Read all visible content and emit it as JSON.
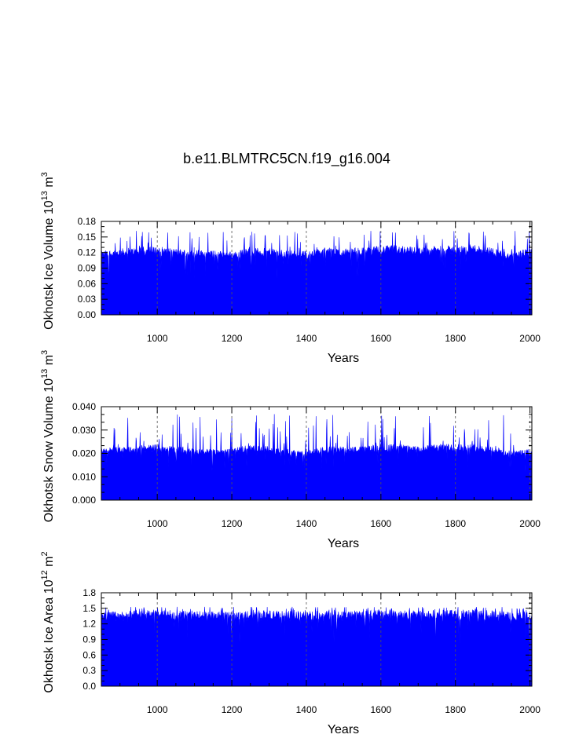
{
  "title": "b.e11.BLMTRC5CN.f19_g16.004",
  "series_color": "#0000ff",
  "chart_data": [
    {
      "type": "area",
      "title": "",
      "xlabel": "Years",
      "ylabel_text": "Okhotsk Ice Volume 10",
      "ylabel_exp": "13",
      "ylabel_unit": " m",
      "ylabel_unit_exp": "3",
      "xlim": [
        850,
        2005
      ],
      "ylim": [
        0,
        0.18
      ],
      "xticks": [
        1000,
        1200,
        1400,
        1600,
        1800,
        2000
      ],
      "yticks": [
        "0.00",
        "0.03",
        "0.06",
        "0.09",
        "0.12",
        "0.15",
        "0.18"
      ],
      "typical_max": 0.13,
      "peak_max": 0.162,
      "envelope": [
        [
          850,
          0.123
        ],
        [
          900,
          0.128
        ],
        [
          950,
          0.13
        ],
        [
          1000,
          0.132
        ],
        [
          1050,
          0.128
        ],
        [
          1100,
          0.126
        ],
        [
          1150,
          0.124
        ],
        [
          1200,
          0.122
        ],
        [
          1250,
          0.13
        ],
        [
          1300,
          0.128
        ],
        [
          1350,
          0.125
        ],
        [
          1400,
          0.123
        ],
        [
          1450,
          0.13
        ],
        [
          1500,
          0.128
        ],
        [
          1550,
          0.13
        ],
        [
          1600,
          0.133
        ],
        [
          1650,
          0.135
        ],
        [
          1700,
          0.13
        ],
        [
          1750,
          0.133
        ],
        [
          1800,
          0.133
        ],
        [
          1850,
          0.136
        ],
        [
          1900,
          0.13
        ],
        [
          1950,
          0.12
        ],
        [
          2005,
          0.13
        ]
      ]
    },
    {
      "type": "area",
      "title": "",
      "xlabel": "Years",
      "ylabel_text": "Okhotsk Snow Volume 10",
      "ylabel_exp": "13",
      "ylabel_unit": " m",
      "ylabel_unit_exp": "3",
      "xlim": [
        850,
        2005
      ],
      "ylim": [
        0,
        0.04
      ],
      "xticks": [
        1000,
        1200,
        1400,
        1600,
        1800,
        2000
      ],
      "yticks": [
        "0.000",
        "0.010",
        "0.020",
        "0.030",
        "0.040"
      ],
      "typical_max": 0.024,
      "peak_max": 0.037,
      "envelope": [
        [
          850,
          0.022
        ],
        [
          900,
          0.023
        ],
        [
          950,
          0.023
        ],
        [
          1000,
          0.024
        ],
        [
          1050,
          0.023
        ],
        [
          1100,
          0.022
        ],
        [
          1150,
          0.022
        ],
        [
          1200,
          0.022
        ],
        [
          1250,
          0.024
        ],
        [
          1300,
          0.023
        ],
        [
          1350,
          0.022
        ],
        [
          1400,
          0.021
        ],
        [
          1450,
          0.023
        ],
        [
          1500,
          0.023
        ],
        [
          1550,
          0.023
        ],
        [
          1600,
          0.024
        ],
        [
          1650,
          0.024
        ],
        [
          1700,
          0.023
        ],
        [
          1750,
          0.024
        ],
        [
          1800,
          0.024
        ],
        [
          1850,
          0.024
        ],
        [
          1900,
          0.023
        ],
        [
          1950,
          0.021
        ],
        [
          2005,
          0.022
        ]
      ]
    },
    {
      "type": "area",
      "title": "",
      "xlabel": "Years",
      "ylabel_text": "Okhotsk Ice Area 10",
      "ylabel_exp": "12",
      "ylabel_unit": " m",
      "ylabel_unit_exp": "2",
      "xlim": [
        850,
        2005
      ],
      "ylim": [
        0,
        1.8
      ],
      "xticks": [
        1000,
        1200,
        1400,
        1600,
        1800,
        2000
      ],
      "yticks": [
        "0.0",
        "0.3",
        "0.6",
        "0.9",
        "1.2",
        "1.5",
        "1.8"
      ],
      "typical_max": 1.46,
      "peak_max": 1.53,
      "envelope": [
        [
          850,
          1.44
        ],
        [
          900,
          1.45
        ],
        [
          950,
          1.46
        ],
        [
          1000,
          1.47
        ],
        [
          1050,
          1.46
        ],
        [
          1100,
          1.45
        ],
        [
          1150,
          1.44
        ],
        [
          1200,
          1.43
        ],
        [
          1250,
          1.46
        ],
        [
          1300,
          1.46
        ],
        [
          1350,
          1.45
        ],
        [
          1400,
          1.44
        ],
        [
          1450,
          1.46
        ],
        [
          1500,
          1.46
        ],
        [
          1550,
          1.46
        ],
        [
          1600,
          1.47
        ],
        [
          1650,
          1.47
        ],
        [
          1700,
          1.46
        ],
        [
          1750,
          1.47
        ],
        [
          1800,
          1.47
        ],
        [
          1850,
          1.47
        ],
        [
          1900,
          1.46
        ],
        [
          1950,
          1.44
        ],
        [
          2005,
          1.45
        ]
      ]
    }
  ]
}
